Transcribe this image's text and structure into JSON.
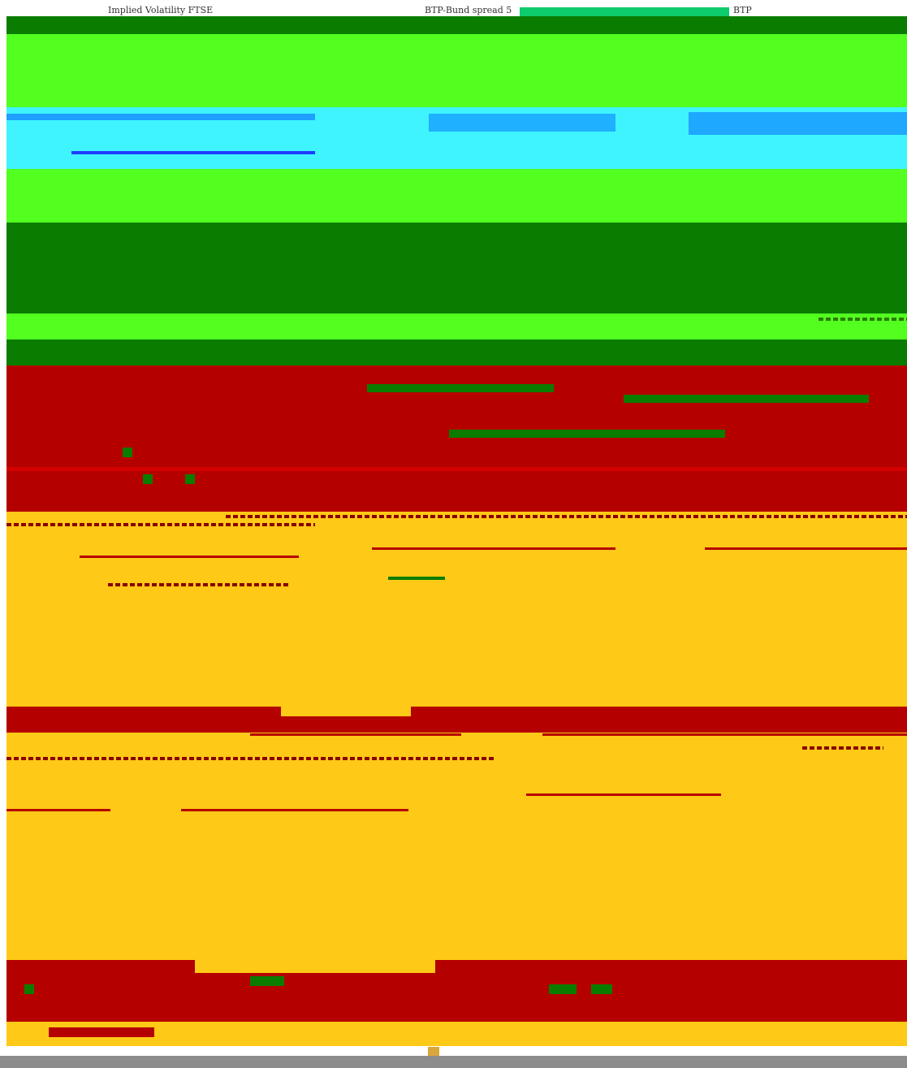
{
  "header": {
    "label_1": "Implied Volatility FTSE",
    "label_2": "BTP-Bund spread 5",
    "label_3": "BTP"
  },
  "colors": {
    "green_dark": "#0a7d00",
    "green_light": "#52ff1f",
    "cyan": "#3ff4ff",
    "blue": "#1f4cff",
    "red": "#b50000",
    "yellow": "#ffc917",
    "gray": "#8c8c8c"
  }
}
